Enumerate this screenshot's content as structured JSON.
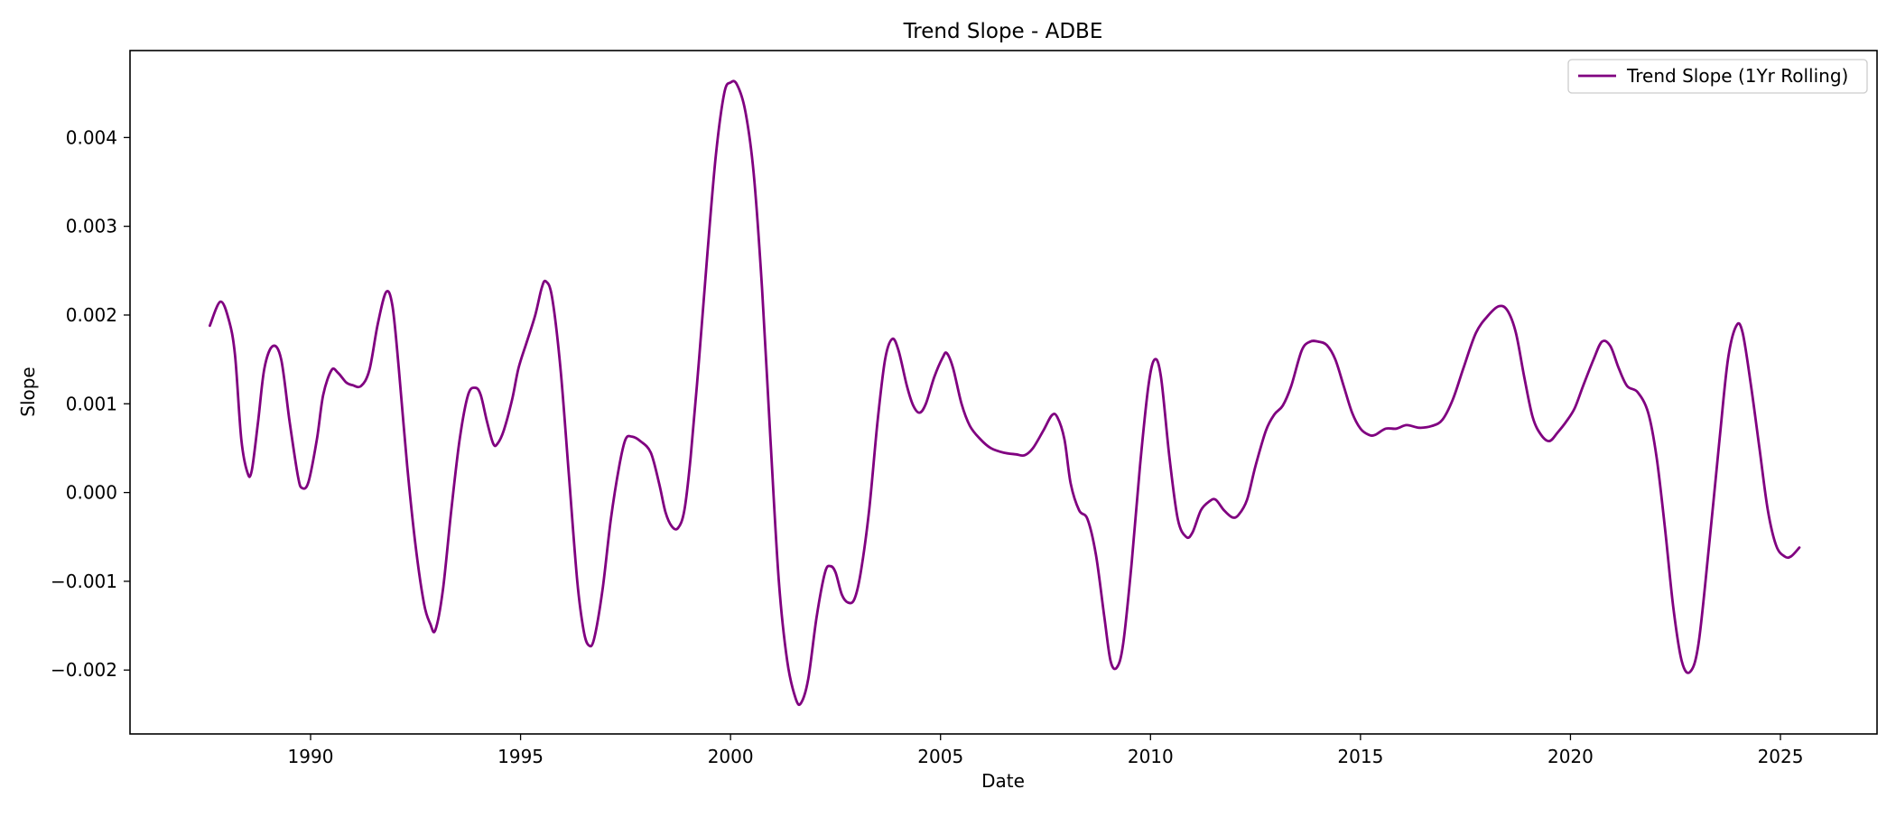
{
  "chart_data": {
    "type": "line",
    "title": "Trend Slope - ADBE",
    "xlabel": "Date",
    "ylabel": "Slope",
    "xlim": [
      1985.7,
      2027.3
    ],
    "ylim": [
      -0.00272,
      0.00498
    ],
    "xticks": [
      1990,
      1995,
      2000,
      2005,
      2010,
      2015,
      2020,
      2025
    ],
    "xtick_labels": [
      "1990",
      "1995",
      "2000",
      "2005",
      "2010",
      "2015",
      "2020",
      "2025"
    ],
    "yticks": [
      -0.002,
      -0.001,
      0.0,
      0.001,
      0.002,
      0.003,
      0.004
    ],
    "ytick_labels": [
      "−0.002",
      "−0.001",
      "0.000",
      "0.001",
      "0.002",
      "0.003",
      "0.004"
    ],
    "grid": false,
    "legend_position": "top-right",
    "series": [
      {
        "name": "Trend Slope (1Yr Rolling)",
        "color": "#800080",
        "points": [
          [
            1987.6,
            0.00188
          ],
          [
            1987.85,
            0.00215
          ],
          [
            1988.05,
            0.00195
          ],
          [
            1988.2,
            0.00155
          ],
          [
            1988.35,
            0.0006
          ],
          [
            1988.5,
            0.00022
          ],
          [
            1988.6,
            0.00025
          ],
          [
            1988.75,
            0.0008
          ],
          [
            1988.9,
            0.0014
          ],
          [
            1989.1,
            0.00165
          ],
          [
            1989.3,
            0.0015
          ],
          [
            1989.5,
            0.0008
          ],
          [
            1989.7,
            0.00018
          ],
          [
            1989.8,
            5e-05
          ],
          [
            1989.95,
            0.00012
          ],
          [
            1990.15,
            0.0006
          ],
          [
            1990.3,
            0.0011
          ],
          [
            1990.5,
            0.00138
          ],
          [
            1990.65,
            0.00135
          ],
          [
            1990.85,
            0.00124
          ],
          [
            1991.0,
            0.00121
          ],
          [
            1991.2,
            0.0012
          ],
          [
            1991.4,
            0.00138
          ],
          [
            1991.6,
            0.0019
          ],
          [
            1991.8,
            0.00226
          ],
          [
            1991.95,
            0.0021
          ],
          [
            1992.1,
            0.0014
          ],
          [
            1992.3,
            0.0003
          ],
          [
            1992.5,
            -0.0006
          ],
          [
            1992.7,
            -0.00125
          ],
          [
            1992.85,
            -0.00148
          ],
          [
            1992.97,
            -0.00155
          ],
          [
            1993.15,
            -0.0011
          ],
          [
            1993.35,
            -0.0002
          ],
          [
            1993.55,
            0.0006
          ],
          [
            1993.75,
            0.0011
          ],
          [
            1993.92,
            0.00118
          ],
          [
            1994.05,
            0.0011
          ],
          [
            1994.2,
            0.0008
          ],
          [
            1994.35,
            0.00055
          ],
          [
            1994.45,
            0.00055
          ],
          [
            1994.6,
            0.0007
          ],
          [
            1994.8,
            0.00105
          ],
          [
            1994.95,
            0.0014
          ],
          [
            1995.15,
            0.0017
          ],
          [
            1995.35,
            0.002
          ],
          [
            1995.5,
            0.0023
          ],
          [
            1995.6,
            0.00238
          ],
          [
            1995.75,
            0.0022
          ],
          [
            1995.95,
            0.0014
          ],
          [
            1996.15,
            0.0002
          ],
          [
            1996.35,
            -0.001
          ],
          [
            1996.5,
            -0.00155
          ],
          [
            1996.62,
            -0.00172
          ],
          [
            1996.75,
            -0.00165
          ],
          [
            1996.95,
            -0.0011
          ],
          [
            1997.15,
            -0.0003
          ],
          [
            1997.35,
            0.0003
          ],
          [
            1997.5,
            0.0006
          ],
          [
            1997.65,
            0.00063
          ],
          [
            1997.85,
            0.00058
          ],
          [
            1998.1,
            0.00045
          ],
          [
            1998.3,
            0.0001
          ],
          [
            1998.45,
            -0.00022
          ],
          [
            1998.6,
            -0.00038
          ],
          [
            1998.75,
            -0.0004
          ],
          [
            1998.9,
            -0.0002
          ],
          [
            1999.05,
            0.0004
          ],
          [
            1999.25,
            0.0015
          ],
          [
            1999.45,
            0.0027
          ],
          [
            1999.65,
            0.0038
          ],
          [
            1999.85,
            0.0045
          ],
          [
            2000.0,
            0.00462
          ],
          [
            2000.15,
            0.0046
          ],
          [
            2000.35,
            0.0043
          ],
          [
            2000.55,
            0.0036
          ],
          [
            2000.75,
            0.0023
          ],
          [
            2000.95,
            0.0006
          ],
          [
            2001.15,
            -0.001
          ],
          [
            2001.35,
            -0.0019
          ],
          [
            2001.55,
            -0.00232
          ],
          [
            2001.68,
            -0.00237
          ],
          [
            2001.85,
            -0.0021
          ],
          [
            2002.05,
            -0.0014
          ],
          [
            2002.25,
            -0.0009
          ],
          [
            2002.38,
            -0.00083
          ],
          [
            2002.5,
            -0.0009
          ],
          [
            2002.65,
            -0.00115
          ],
          [
            2002.8,
            -0.00124
          ],
          [
            2002.95,
            -0.0012
          ],
          [
            2003.1,
            -0.0009
          ],
          [
            2003.3,
            -0.0002
          ],
          [
            2003.5,
            0.0008
          ],
          [
            2003.68,
            0.0015
          ],
          [
            2003.85,
            0.00173
          ],
          [
            2004.0,
            0.0016
          ],
          [
            2004.2,
            0.0012
          ],
          [
            2004.35,
            0.00098
          ],
          [
            2004.5,
            0.0009
          ],
          [
            2004.65,
            0.001
          ],
          [
            2004.85,
            0.0013
          ],
          [
            2005.05,
            0.00152
          ],
          [
            2005.15,
            0.00157
          ],
          [
            2005.3,
            0.0014
          ],
          [
            2005.5,
            0.001
          ],
          [
            2005.7,
            0.00075
          ],
          [
            2005.95,
            0.0006
          ],
          [
            2006.2,
            0.0005
          ],
          [
            2006.5,
            0.00045
          ],
          [
            2006.8,
            0.00043
          ],
          [
            2007.0,
            0.00042
          ],
          [
            2007.2,
            0.0005
          ],
          [
            2007.45,
            0.0007
          ],
          [
            2007.65,
            0.00087
          ],
          [
            2007.78,
            0.00085
          ],
          [
            2007.95,
            0.0006
          ],
          [
            2008.1,
            0.0001
          ],
          [
            2008.3,
            -0.0002
          ],
          [
            2008.5,
            -0.0003
          ],
          [
            2008.7,
            -0.0007
          ],
          [
            2008.9,
            -0.0014
          ],
          [
            2009.05,
            -0.0019
          ],
          [
            2009.2,
            -0.00197
          ],
          [
            2009.35,
            -0.0017
          ],
          [
            2009.55,
            -0.0008
          ],
          [
            2009.75,
            0.0003
          ],
          [
            2009.95,
            0.0012
          ],
          [
            2010.1,
            0.0015
          ],
          [
            2010.25,
            0.0013
          ],
          [
            2010.45,
            0.0004
          ],
          [
            2010.65,
            -0.0003
          ],
          [
            2010.85,
            -0.0005
          ],
          [
            2011.0,
            -0.00045
          ],
          [
            2011.2,
            -0.0002
          ],
          [
            2011.4,
            -0.0001
          ],
          [
            2011.55,
            -8e-05
          ],
          [
            2011.75,
            -0.0002
          ],
          [
            2011.95,
            -0.00028
          ],
          [
            2012.1,
            -0.00025
          ],
          [
            2012.3,
            -8e-05
          ],
          [
            2012.5,
            0.0003
          ],
          [
            2012.75,
            0.0007
          ],
          [
            2012.95,
            0.00088
          ],
          [
            2013.15,
            0.00098
          ],
          [
            2013.35,
            0.0012
          ],
          [
            2013.6,
            0.0016
          ],
          [
            2013.8,
            0.0017
          ],
          [
            2014.0,
            0.0017
          ],
          [
            2014.2,
            0.00166
          ],
          [
            2014.4,
            0.0015
          ],
          [
            2014.6,
            0.0012
          ],
          [
            2014.8,
            0.0009
          ],
          [
            2015.0,
            0.00072
          ],
          [
            2015.2,
            0.00065
          ],
          [
            2015.35,
            0.00065
          ],
          [
            2015.6,
            0.00072
          ],
          [
            2015.85,
            0.00072
          ],
          [
            2016.1,
            0.00076
          ],
          [
            2016.4,
            0.00073
          ],
          [
            2016.7,
            0.00075
          ],
          [
            2016.95,
            0.00082
          ],
          [
            2017.2,
            0.00105
          ],
          [
            2017.45,
            0.0014
          ],
          [
            2017.75,
            0.0018
          ],
          [
            2018.05,
            0.002
          ],
          [
            2018.3,
            0.0021
          ],
          [
            2018.5,
            0.00205
          ],
          [
            2018.7,
            0.0018
          ],
          [
            2018.9,
            0.0013
          ],
          [
            2019.1,
            0.00085
          ],
          [
            2019.3,
            0.00065
          ],
          [
            2019.5,
            0.00058
          ],
          [
            2019.7,
            0.00068
          ],
          [
            2019.9,
            0.0008
          ],
          [
            2020.1,
            0.00095
          ],
          [
            2020.3,
            0.0012
          ],
          [
            2020.55,
            0.0015
          ],
          [
            2020.75,
            0.0017
          ],
          [
            2020.95,
            0.00165
          ],
          [
            2021.15,
            0.0014
          ],
          [
            2021.35,
            0.0012
          ],
          [
            2021.6,
            0.00113
          ],
          [
            2021.85,
            0.0009
          ],
          [
            2022.05,
            0.0004
          ],
          [
            2022.25,
            -0.0004
          ],
          [
            2022.45,
            -0.0013
          ],
          [
            2022.65,
            -0.0019
          ],
          [
            2022.85,
            -0.00202
          ],
          [
            2023.05,
            -0.0017
          ],
          [
            2023.3,
            -0.0006
          ],
          [
            2023.55,
            0.0006
          ],
          [
            2023.75,
            0.0015
          ],
          [
            2023.95,
            0.00188
          ],
          [
            2024.1,
            0.0018
          ],
          [
            2024.3,
            0.0012
          ],
          [
            2024.5,
            0.0005
          ],
          [
            2024.7,
            -0.0002
          ],
          [
            2024.9,
            -0.0006
          ],
          [
            2025.1,
            -0.00072
          ],
          [
            2025.25,
            -0.00072
          ],
          [
            2025.45,
            -0.00062
          ]
        ]
      }
    ]
  }
}
